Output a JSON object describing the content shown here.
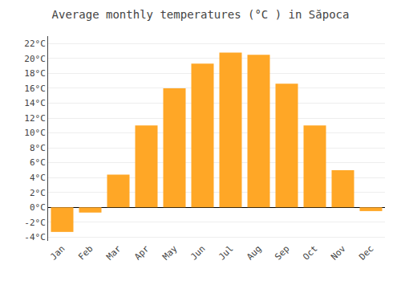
{
  "chart_data": {
    "type": "bar",
    "title": "Average monthly temperatures (°C ) in Săpoca",
    "categories": [
      "Jan",
      "Feb",
      "Mar",
      "Apr",
      "May",
      "Jun",
      "Jul",
      "Aug",
      "Sep",
      "Oct",
      "Nov",
      "Dec"
    ],
    "values": [
      -3.3,
      -0.7,
      4.4,
      11.0,
      16.0,
      19.3,
      20.8,
      20.5,
      16.6,
      11.0,
      5.0,
      -0.5
    ],
    "color": "#FFA726",
    "ylim": [
      -4.5,
      23
    ],
    "yticks": [
      {
        "value": -4,
        "label": "-4°C"
      },
      {
        "value": -2,
        "label": "-2°C"
      },
      {
        "value": 0,
        "label": "0°C"
      },
      {
        "value": 2,
        "label": "2°C"
      },
      {
        "value": 4,
        "label": "4°C"
      },
      {
        "value": 6,
        "label": "6°C"
      },
      {
        "value": 8,
        "label": "8°C"
      },
      {
        "value": 10,
        "label": "10°C"
      },
      {
        "value": 12,
        "label": "12°C"
      },
      {
        "value": 14,
        "label": "14°C"
      },
      {
        "value": 16,
        "label": "16°C"
      },
      {
        "value": 18,
        "label": "18°C"
      },
      {
        "value": 20,
        "label": "20°C"
      },
      {
        "value": 22,
        "label": "22°C"
      }
    ],
    "grid": true
  }
}
